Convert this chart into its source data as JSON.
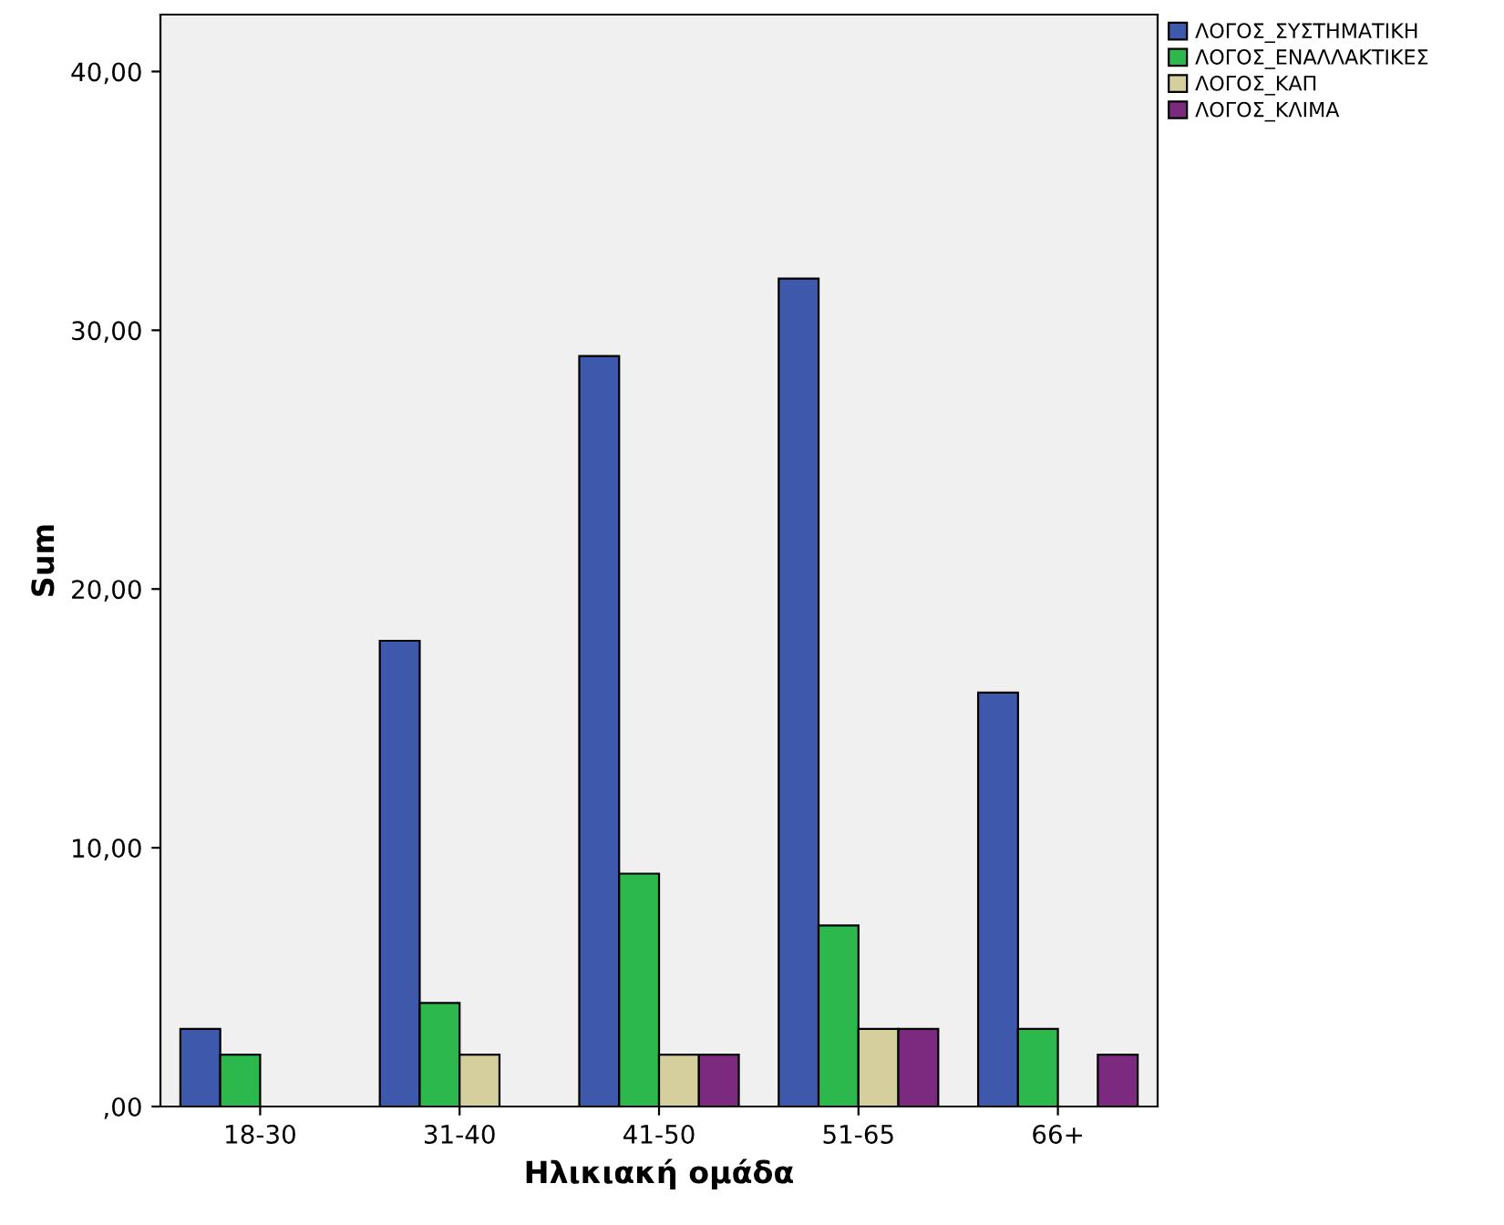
{
  "chart_data": {
    "type": "bar",
    "xlabel": "Ηλικιακή ομάδα",
    "ylabel": "Sum",
    "categories": [
      "18-30",
      "31-40",
      "41-50",
      "51-65",
      "66+"
    ],
    "series": [
      {
        "name": "ΛΟΓΟΣ_ΣΥΣΤΗΜΑΤΙΚΗ",
        "color": "#3e58ac",
        "values": [
          3,
          18,
          29,
          32,
          16
        ]
      },
      {
        "name": "ΛΟΓΟΣ_ΕΝΑΛΛΑΚΤΙΚΕΣ",
        "color": "#2db84d",
        "values": [
          2,
          4,
          9,
          7,
          3
        ]
      },
      {
        "name": "ΛΟΓΟΣ_ΚΑΠ",
        "color": "#d5cf9d",
        "values": [
          null,
          2,
          2,
          3,
          null
        ]
      },
      {
        "name": "ΛΟΓΟΣ_ΚΛΙΜΑ",
        "color": "#7b2a7f",
        "values": [
          null,
          null,
          2,
          3,
          2
        ]
      }
    ],
    "ylim": [
      0,
      42.2
    ],
    "yticks": [
      {
        "value": 0,
        "label": ",00"
      },
      {
        "value": 10,
        "label": "10,00"
      },
      {
        "value": 20,
        "label": "20,00"
      },
      {
        "value": 30,
        "label": "30,00"
      },
      {
        "value": 40,
        "label": "40,00"
      }
    ],
    "grid": false,
    "legend": "top right"
  }
}
